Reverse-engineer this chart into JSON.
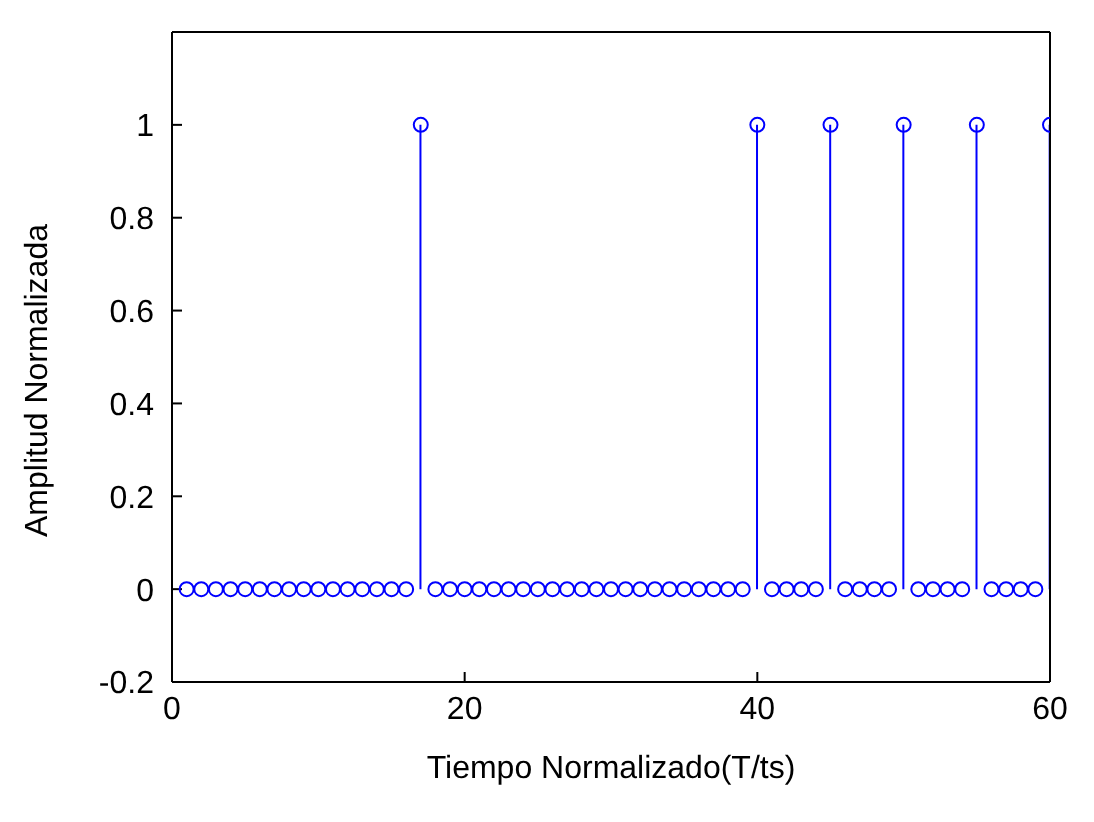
{
  "chart_data": {
    "type": "lollipop",
    "xlabel": "Tiempo Normalizado(T/ts)",
    "ylabel": "Amplitud Normalizada",
    "x": [
      1,
      2,
      3,
      4,
      5,
      6,
      7,
      8,
      9,
      10,
      11,
      12,
      13,
      14,
      15,
      16,
      17,
      18,
      19,
      20,
      21,
      22,
      23,
      24,
      25,
      26,
      27,
      28,
      29,
      30,
      31,
      32,
      33,
      34,
      35,
      36,
      37,
      38,
      39,
      40,
      41,
      42,
      43,
      44,
      45,
      46,
      47,
      48,
      49,
      50,
      51,
      52,
      53,
      54,
      55,
      56,
      57,
      58,
      59,
      60
    ],
    "values": [
      0,
      0,
      0,
      0,
      0,
      0,
      0,
      0,
      0,
      0,
      0,
      0,
      0,
      0,
      0,
      0,
      1,
      0,
      0,
      0,
      0,
      0,
      0,
      0,
      0,
      0,
      0,
      0,
      0,
      0,
      0,
      0,
      0,
      0,
      0,
      0,
      0,
      0,
      0,
      1,
      0,
      0,
      0,
      0,
      1,
      0,
      0,
      0,
      0,
      1,
      0,
      0,
      0,
      0,
      1,
      0,
      0,
      0,
      0,
      1
    ],
    "color": "#0000ff",
    "marker": "circle",
    "xlim": [
      0,
      60
    ],
    "xticks": [
      0,
      20,
      40,
      60
    ],
    "ylim": [
      -0.2,
      1.2
    ],
    "yticks": [
      -0.2,
      0,
      0.2,
      0.4,
      0.6,
      0.8,
      1
    ],
    "grid": false,
    "legend": false
  }
}
